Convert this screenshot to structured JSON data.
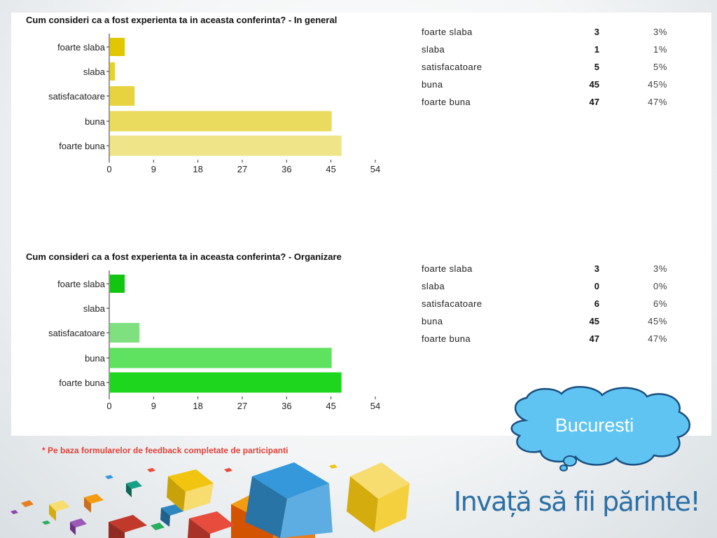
{
  "chart_data": [
    {
      "type": "bar",
      "orientation": "horizontal",
      "title": "Cum consideri ca a fost experienta ta in aceasta conferinta? - In general",
      "categories": [
        "foarte slaba",
        "slaba",
        "satisfacatoare",
        "buna",
        "foarte buna"
      ],
      "values": [
        3,
        1,
        5,
        45,
        47
      ],
      "percentages": [
        "3%",
        "1%",
        "5%",
        "45%",
        "47%"
      ],
      "xlim": [
        0,
        54
      ],
      "xticks": [
        "0",
        "9",
        "18",
        "27",
        "36",
        "45",
        "54"
      ],
      "colors": [
        "#e1c700",
        "#e8d12b",
        "#e7d33f",
        "#eada5e",
        "#efe487"
      ]
    },
    {
      "type": "bar",
      "orientation": "horizontal",
      "title": "Cum consideri ca a fost experienta ta in aceasta conferinta? - Organizare",
      "categories": [
        "foarte slaba",
        "slaba",
        "satisfacatoare",
        "buna",
        "foarte buna"
      ],
      "values": [
        3,
        0,
        6,
        45,
        47
      ],
      "percentages": [
        "3%",
        "0%",
        "6%",
        "45%",
        "47%"
      ],
      "xlim": [
        0,
        54
      ],
      "xticks": [
        "0",
        "9",
        "18",
        "27",
        "36",
        "45",
        "54"
      ],
      "colors": [
        "#11c511",
        "#33cc33",
        "#7fe07f",
        "#5fe25f",
        "#1fd61f"
      ]
    }
  ],
  "footnote": "* Pe baza formularelor de feedback completate de participanti",
  "callout": "Bucuresti",
  "brand": "Invață să fii părinte!"
}
